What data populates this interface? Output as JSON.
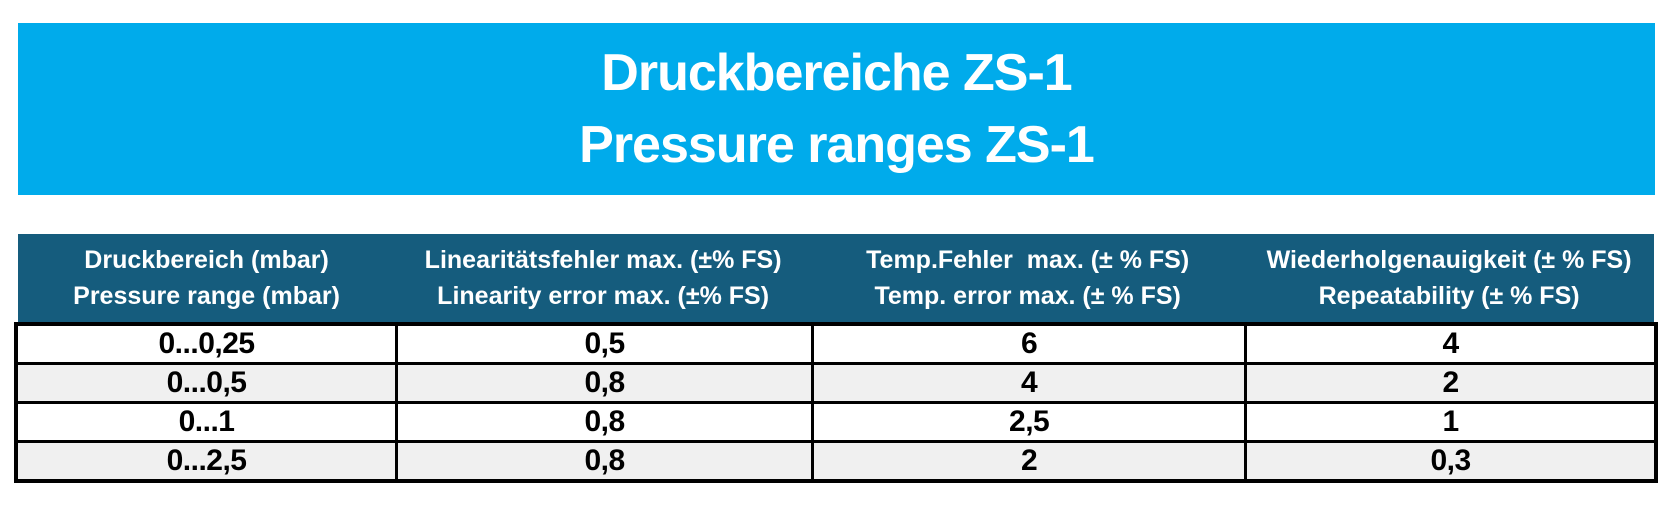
{
  "banner": {
    "title_de": "Druckbereiche ZS-1",
    "title_en": "Pressure ranges ZS-1",
    "background_color": "#00ABEB",
    "text_color": "#FFFFFF"
  },
  "table": {
    "header": {
      "background_color": "#155C7D",
      "text_color": "#FFFFFF",
      "columns": [
        {
          "de": "Druckbereich (mbar)",
          "en": "Pressure range (mbar)"
        },
        {
          "de": "Linearitätsfehler max. (±% FS)",
          "en": "Linearity error max. (±% FS)"
        },
        {
          "de": "Temp.Fehler  max. (± % FS)",
          "en": "Temp. error max. (± % FS)"
        },
        {
          "de": "Wiederholgenauigkeit (± % FS)",
          "en": "Repeatability (± % FS)"
        }
      ]
    },
    "rows": [
      {
        "cells": [
          "0...0,25",
          "0,5",
          "6",
          "4"
        ]
      },
      {
        "cells": [
          "0...0,5",
          "0,8",
          "4",
          "2"
        ]
      },
      {
        "cells": [
          "0...1",
          "0,8",
          "2,5",
          "1"
        ]
      },
      {
        "cells": [
          "0...2,5",
          "0,8",
          "2",
          "0,3"
        ]
      }
    ],
    "alt_row_color": "#F0F0F0",
    "border_color": "#000000"
  }
}
